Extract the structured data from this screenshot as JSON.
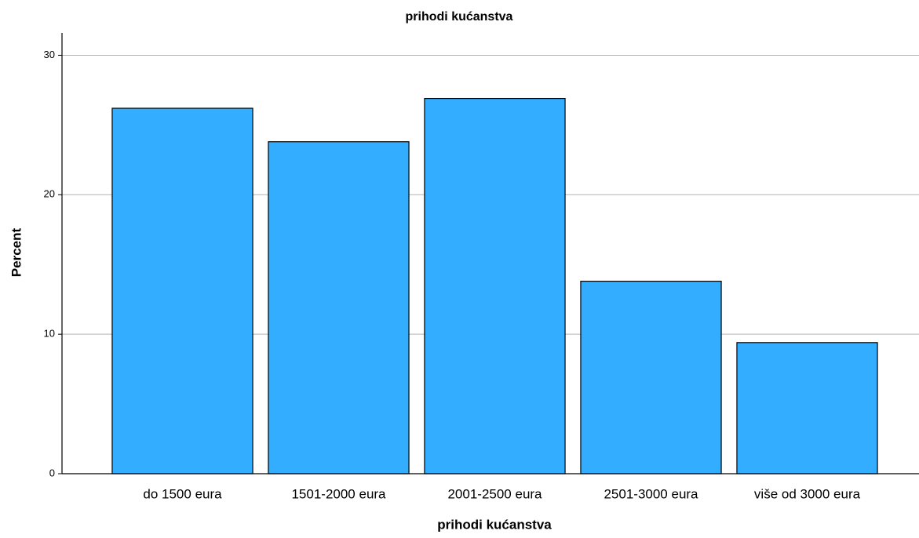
{
  "chart_data": {
    "type": "bar",
    "title": "prihodi kućanstva",
    "x_label": "prihodi kućanstva",
    "y_label": "Percent",
    "categories": [
      "do 1500 eura",
      "1501-2000 eura",
      "2001-2500 eura",
      "2501-3000 eura",
      "više od 3000 eura"
    ],
    "values": [
      26.2,
      23.8,
      26.9,
      13.8,
      9.4
    ],
    "color": "#33adff",
    "ylim": [
      0,
      31.6
    ],
    "yticks": [
      0,
      10,
      20,
      30
    ],
    "grid": true
  }
}
